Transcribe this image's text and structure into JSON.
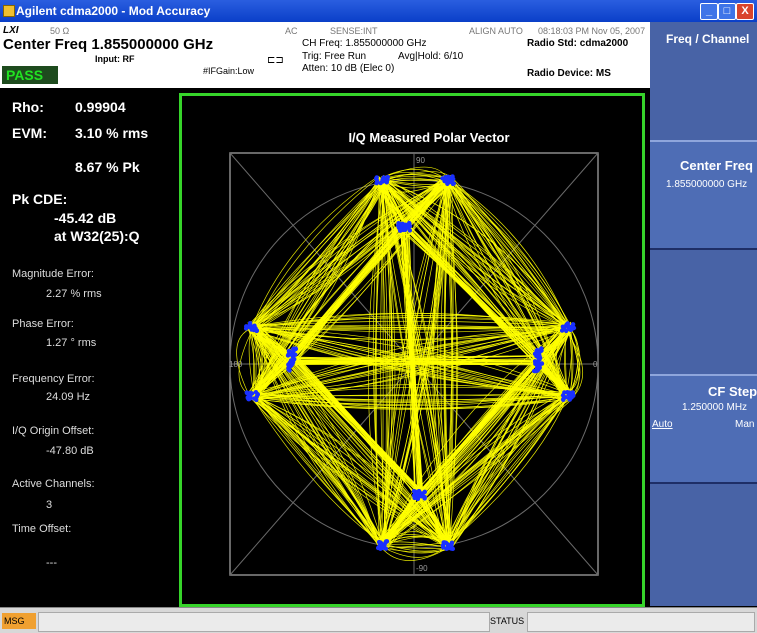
{
  "window": {
    "title": "Agilent cdma2000 - Mod Accuracy",
    "buttons": {
      "minimize": "_",
      "maximize": "□",
      "close": "X"
    }
  },
  "status_bar": {
    "impedance": "50 Ω",
    "coupling": "AC",
    "sense": "SENSE:INT",
    "align": "ALIGN AUTO",
    "datetime": "08:18:03 PM Nov 05, 2007",
    "center_freq": "Center Freq  1.855000000 GHz",
    "input": "Input: RF",
    "if_gain": "#IFGain:Low",
    "ch_freq": "CH Freq: 1.855000000 GHz",
    "trig": "Trig: Free Run",
    "avg_hold": "Avg|Hold: 6/10",
    "atten": "Atten: 10 dB (Elec 0)",
    "radio_std": "Radio Std: cdma2000",
    "radio_device": "Radio Device: MS",
    "pass": "PASS"
  },
  "results": {
    "rho_label": "Rho:",
    "rho_value": "0.99904",
    "evm_label": "EVM:",
    "evm_rms": "3.10 % rms",
    "evm_pk": "8.67 % Pk",
    "pk_cde_label": "Pk CDE:",
    "pk_cde_value": "-45.42 dB",
    "pk_cde_at": "at W32(25):Q",
    "mag_err_label": "Magnitude Error:",
    "mag_err_value": "2.27 % rms",
    "phase_err_label": "Phase Error:",
    "phase_err_value": "1.27 ° rms",
    "freq_err_label": "Frequency Error:",
    "freq_err_value": "24.09 Hz",
    "iq_offset_label": "I/Q Origin Offset:",
    "iq_offset_value": "-47.80 dB",
    "active_ch_label": "Active Channels:",
    "active_ch_value": "3",
    "time_offset_label": "Time Offset:",
    "time_offset_value": "---"
  },
  "plot": {
    "title": "I/Q Measured Polar Vector",
    "axis_90": "90",
    "axis_0": "0",
    "axis_180": "180",
    "axis_m90": "-90",
    "colors": {
      "trajectory": "#ffff00",
      "symbols": "#1a30ff",
      "grid": "#8a8a8a",
      "frame": "#36d42a"
    }
  },
  "softkeys": {
    "menu_title": "Freq / Channel",
    "center_freq_label": "Center Freq",
    "center_freq_value": "1.855000000 GHz",
    "cf_step_label": "CF Step",
    "cf_step_value": "1.250000 MHz",
    "cf_step_auto": "Auto",
    "cf_step_man": "Man"
  },
  "bottom": {
    "msg_label": "MSG",
    "status_label": "STATUS"
  }
}
